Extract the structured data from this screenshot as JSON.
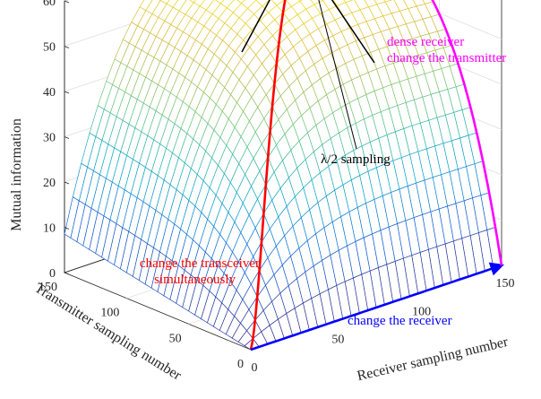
{
  "chart_data": {
    "type": "surface3d",
    "title": "",
    "xlabel": "Receiver sampling number",
    "ylabel": "Transmitter sampling number",
    "zlabel": "Mutual information",
    "xlim": [
      0,
      150
    ],
    "ylim": [
      0,
      150
    ],
    "zlim": [
      0,
      60
    ],
    "x_ticks": [
      "0",
      "50",
      "100",
      "150"
    ],
    "y_ticks": [
      "0",
      "50",
      "100",
      "150"
    ],
    "z_ticks": [
      "0",
      "10",
      "20",
      "30",
      "40",
      "50",
      "60"
    ],
    "grid": true,
    "colormap": "parula (blue at low values, yellow at high values)",
    "surface": {
      "description": "Mutual information rises with both receiver and transmitter sampling numbers and saturates near 60",
      "corner_values": [
        {
          "receiver": 0,
          "transmitter": 0,
          "mutual_information": 0
        },
        {
          "receiver": 150,
          "transmitter": 0,
          "mutual_information": 2
        },
        {
          "receiver": 0,
          "transmitter": 150,
          "mutual_information": 9
        },
        {
          "receiver": 150,
          "transmitter": 150,
          "mutual_information": 62
        }
      ]
    },
    "series": [
      {
        "name": "change the transceiver simultaneously",
        "color": "#ff0000",
        "path": "receiver = transmitter, 0 to 150"
      },
      {
        "name": "change the receiver",
        "color": "#0000ff",
        "path": "transmitter = 0, receiver 0 to 150"
      },
      {
        "name": "dense receiver change the transmitter",
        "color": "#ff00ff",
        "path": "receiver = 150, transmitter 0 to 150"
      }
    ],
    "annotations": [
      {
        "text": "λ/2 sampling",
        "position": "upper middle, arrow pointing to the ridge"
      },
      {
        "text": "change the transceiver",
        "color": "#ff0000"
      },
      {
        "text": "simultaneously",
        "color": "#ff0000"
      },
      {
        "text": "change the receiver",
        "color": "#0000ff"
      },
      {
        "text": "dense receiver",
        "color": "#ff00ff"
      },
      {
        "text": "change the transmitter",
        "color": "#ff00ff"
      }
    ]
  }
}
